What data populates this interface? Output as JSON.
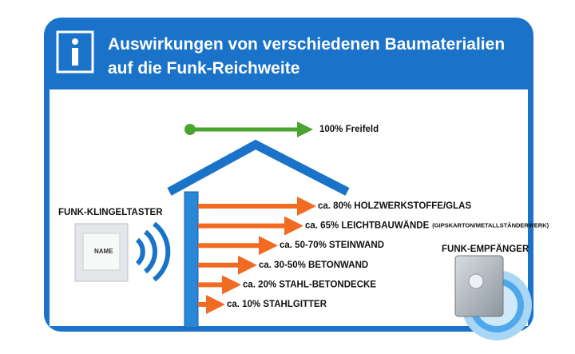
{
  "header": {
    "title_lines": [
      "Auswirkungen von verschiedenen Baumaterialien",
      "auf die Funk-Reichweite"
    ]
  },
  "free_field": {
    "label": "100% Freifeld"
  },
  "materials": [
    {
      "label": "ca. 80% HOLZWERKSTOFFE/GLAS"
    },
    {
      "label": "ca. 65% LEICHTBAUWÄNDE",
      "note": "(GIPSKARTON/METALLSTÄNDERWERK)"
    },
    {
      "label": "ca. 50-70% STEINWAND"
    },
    {
      "label": "ca. 30-50% BETONWAND"
    },
    {
      "label": "ca. 20% STAHL-BETONDECKE"
    },
    {
      "label": "ca. 10% STAHLGITTER"
    }
  ],
  "transmitter": {
    "title": "FUNK-KLINGELTASTER",
    "button_text": "NAME"
  },
  "receiver": {
    "title": "FUNK-EMPFÄNGER"
  }
}
